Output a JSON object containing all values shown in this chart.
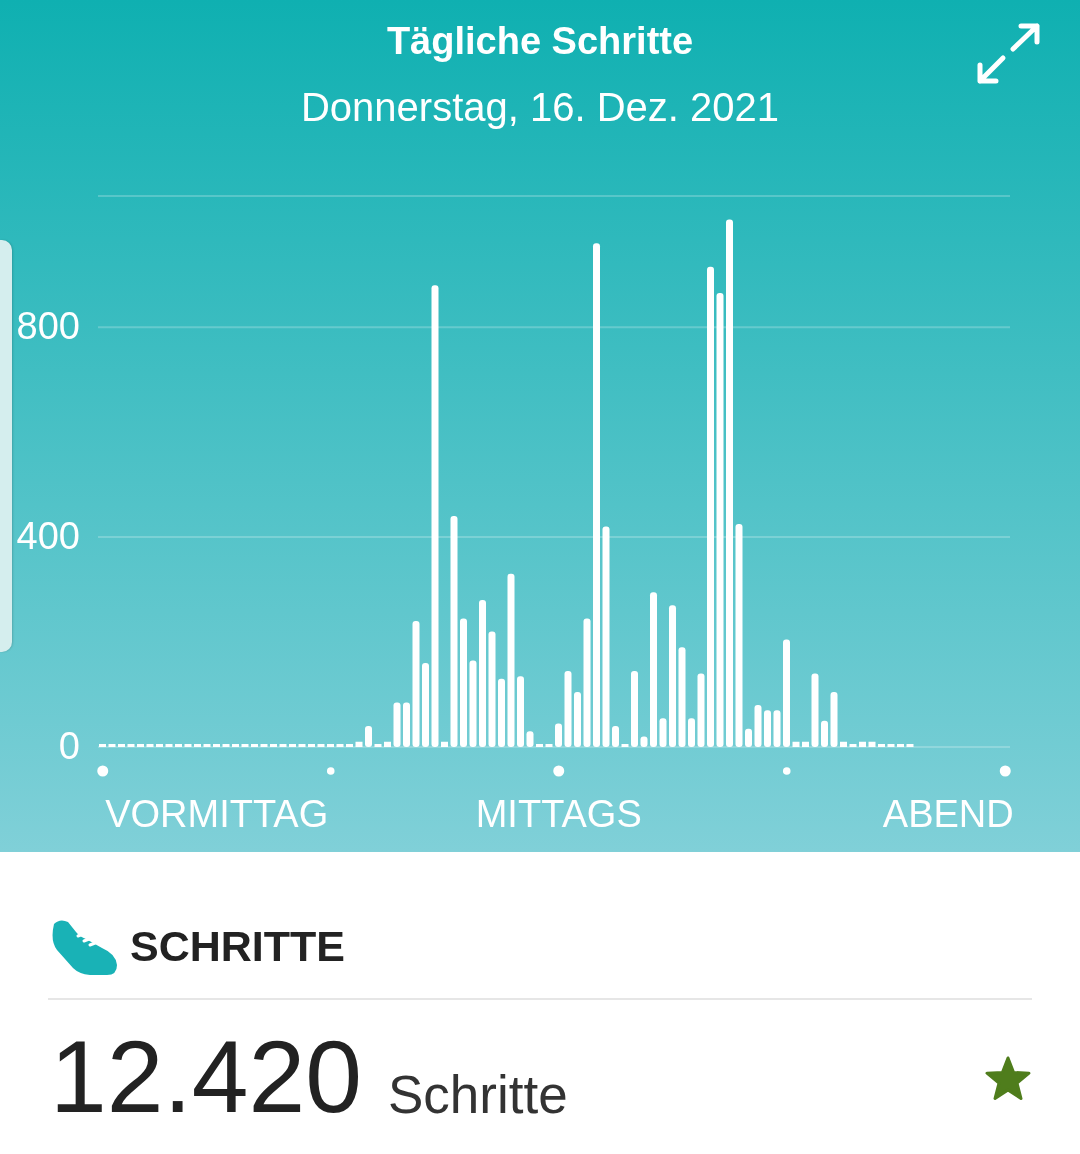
{
  "chart_data": {
    "type": "bar",
    "title": "Tägliche Schritte",
    "subtitle": "Donnerstag, 16. Dez. 2021",
    "categories": [
      null,
      null,
      null,
      null,
      null,
      null,
      null,
      null,
      null,
      null,
      null,
      null,
      "VORMITTAG",
      null,
      null,
      null,
      null,
      null,
      null,
      null,
      null,
      null,
      null,
      null,
      null,
      null,
      null,
      null,
      null,
      null,
      null,
      null,
      null,
      null,
      null,
      null,
      null,
      null,
      null,
      null,
      null,
      null,
      null,
      null,
      null,
      null,
      null,
      null,
      "MITTAGS",
      null,
      null,
      null,
      null,
      null,
      null,
      null,
      null,
      null,
      null,
      null,
      null,
      null,
      null,
      null,
      null,
      null,
      null,
      null,
      null,
      null,
      null,
      null,
      null,
      null,
      null,
      null,
      null,
      null,
      null,
      null,
      null,
      null,
      null,
      null,
      null,
      null,
      null,
      null,
      null,
      "ABEND",
      null,
      null,
      null,
      null,
      null,
      null
    ],
    "values": [
      0,
      0,
      0,
      0,
      0,
      0,
      0,
      0,
      0,
      0,
      0,
      0,
      0,
      0,
      0,
      0,
      0,
      0,
      0,
      0,
      0,
      0,
      0,
      0,
      0,
      0,
      0,
      10,
      40,
      0,
      10,
      85,
      85,
      240,
      160,
      880,
      10,
      440,
      245,
      165,
      280,
      220,
      130,
      330,
      135,
      30,
      0,
      0,
      45,
      145,
      105,
      245,
      960,
      420,
      40,
      0,
      145,
      20,
      295,
      55,
      270,
      190,
      55,
      140,
      915,
      865,
      1005,
      425,
      35,
      80,
      70,
      70,
      205,
      10,
      10,
      140,
      50,
      105,
      10,
      0,
      10,
      10,
      0,
      0,
      0,
      0,
      null,
      null,
      null,
      null,
      null,
      null,
      null,
      null,
      null,
      null
    ],
    "color": "#ffffff",
    "ylim": [
      0,
      1050
    ],
    "yticks": [
      0,
      400,
      800
    ],
    "grid": "y",
    "annotations": [
      "SCHRITTE",
      "12.420",
      "Schritte"
    ]
  }
}
